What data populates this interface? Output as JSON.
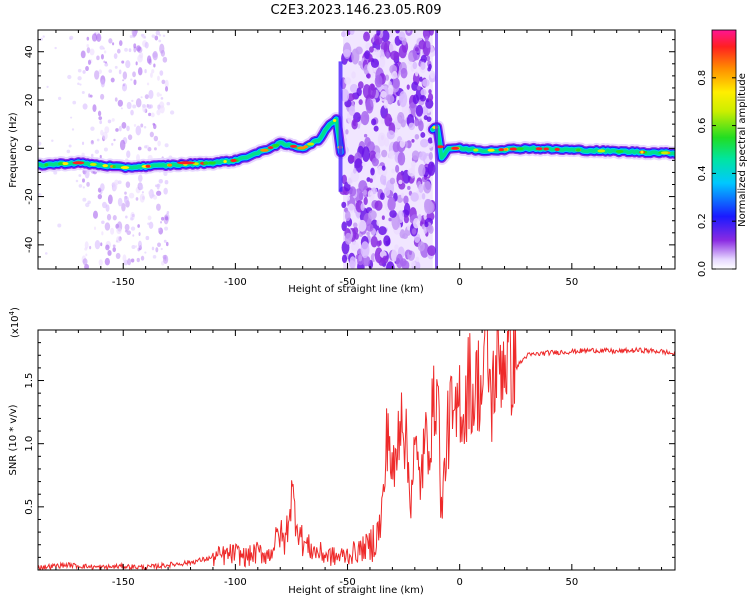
{
  "title": "C2E3.2023.146.23.05.R09",
  "colors": {
    "trace": "#ee2a2a",
    "axis": "#000000",
    "background": "#ffffff"
  },
  "chart_data": [
    {
      "type": "heatmap",
      "xlabel": "Height of straight line (km)",
      "ylabel": "Frequency (Hz)",
      "xlim": [
        -188,
        96
      ],
      "ylim": [
        -50,
        49
      ],
      "xticks": [
        -150,
        -100,
        -50,
        0,
        50
      ],
      "yticks": [
        -40,
        -20,
        0,
        20,
        40
      ],
      "colorbar": {
        "label": "Normalized spectral amplitude",
        "range": [
          0,
          1
        ],
        "ticks": [
          "0.0",
          "0.2",
          "0.4",
          "0.6",
          "0.8"
        ],
        "colormap": "rainbow (white-violet-blue-cyan-green-yellow-red)"
      },
      "ridge": {
        "description": "dominant frequency vs height",
        "x": [
          -188,
          -170,
          -150,
          -130,
          -110,
          -100,
          -90,
          -80,
          -70,
          -62,
          -58,
          -55,
          -52,
          -10,
          -8,
          -5,
          0,
          10,
          30,
          60,
          96
        ],
        "y": [
          -7,
          -6,
          -8,
          -7,
          -6,
          -5,
          -2,
          2,
          0,
          4,
          10,
          12,
          -8,
          9,
          -4,
          0,
          0,
          -1,
          0,
          -1,
          -2
        ]
      },
      "noise_bands": [
        {
          "x_range": [
            -168,
            -130
          ],
          "note": "scattered violet speckle"
        },
        {
          "x_range": [
            -52,
            -12
          ],
          "note": "broadband violet noise filling full frequency range"
        }
      ]
    },
    {
      "type": "line",
      "xlabel": "Height of straight line (km)",
      "ylabel": "SNR (10 * v/v)",
      "y_multiplier": "(x10",
      "y_multiplier_exp": "4",
      "xlim": [
        -188,
        96
      ],
      "ylim": [
        0,
        1.9
      ],
      "xticks": [
        -150,
        -100,
        -50,
        0,
        50
      ],
      "yticks": [
        "0.5",
        "1.0",
        "1.5"
      ],
      "series": [
        {
          "x": [
            -188,
            -175,
            -160,
            -150,
            -140,
            -130,
            -120,
            -110,
            -100,
            -95,
            -90,
            -85,
            -80,
            -78,
            -75,
            -72,
            -70,
            -65,
            -60,
            -55,
            -50,
            -45,
            -40,
            -36,
            -34,
            -32,
            -30,
            -28,
            -26,
            -24,
            -22,
            -20,
            -18,
            -15,
            -12,
            -10,
            -8,
            -6,
            -4,
            -2,
            0,
            2,
            4,
            6,
            8,
            10,
            12,
            14,
            16,
            18,
            20,
            25,
            30,
            40,
            50,
            60,
            70,
            80,
            90,
            96
          ],
          "y": [
            0.02,
            0.04,
            0.02,
            0.03,
            0.02,
            0.04,
            0.06,
            0.1,
            0.13,
            0.1,
            0.14,
            0.12,
            0.3,
            0.2,
            0.6,
            0.35,
            0.22,
            0.15,
            0.12,
            0.1,
            0.12,
            0.15,
            0.2,
            0.3,
            0.55,
            1.2,
            0.7,
            0.9,
            1.4,
            1.0,
            0.6,
            0.95,
            0.7,
            1.0,
            1.2,
            1.55,
            0.4,
            1.0,
            1.25,
            1.1,
            1.4,
            1.2,
            1.55,
            1.35,
            1.5,
            1.4,
            1.9,
            1.3,
            1.6,
            1.65,
            1.7,
            1.6,
            1.7,
            1.72,
            1.73,
            1.74,
            1.73,
            1.74,
            1.73,
            1.71
          ]
        }
      ]
    }
  ]
}
